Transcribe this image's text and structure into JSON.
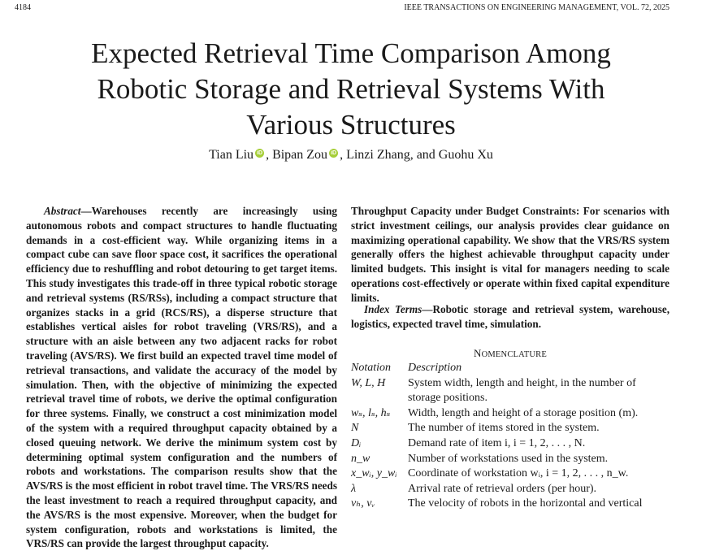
{
  "header": {
    "page_number": "4184",
    "journal": "IEEE TRANSACTIONS ON ENGINEERING MANAGEMENT, VOL. 72, 2025"
  },
  "title": "Expected Retrieval Time Comparison Among Robotic Storage and Retrieval Systems With Various Structures",
  "authors": [
    {
      "name": "Tian Liu",
      "orcid": true
    },
    {
      "name": "Bipan Zou",
      "orcid": true
    },
    {
      "name": "Linzi Zhang, and Guohu Xu",
      "orcid": false
    }
  ],
  "abstract": {
    "label": "Abstract",
    "text": "—Warehouses recently are increasingly using autonomous robots and compact structures to handle fluctuating demands in a cost-efficient way. While organizing items in a compact cube can save floor space cost, it sacrifices the operational efficiency due to reshuffling and robot detouring to get target items. This study investigates this trade-off in three typical robotic storage and retrieval systems (RS/RSs), including a compact structure that organizes stacks in a grid (RCS/RS), a disperse structure that establishes vertical aisles for robot traveling (VRS/RS), and a structure with an aisle between any two adjacent racks for robot traveling (AVS/RS). We first build an expected travel time model of retrieval transactions, and validate the accuracy of the model by simulation. Then, with the objective of minimizing the expected retrieval travel time of robots, we derive the optimal configuration for three systems. Finally, we construct a cost minimization model of the system with a required throughput capacity obtained by a closed queuing network. We derive the minimum system cost by determining optimal system configuration and the numbers of robots and workstations. The comparison results show that the AVS/RS is the most efficient in robot travel time. The VRS/RS needs the least investment to reach a required throughput capacity, and the AVS/RS is the most expensive. Moreover, when the budget for system configuration, robots and workstations is limited, the VRS/RS can provide the largest throughput capacity.",
    "continuation": "Throughput Capacity under Budget Constraints: For scenarios with strict investment ceilings, our analysis provides clear guidance on maximizing operational capability. We show that the VRS/RS system generally offers the highest achievable throughput capacity under limited budgets. This insight is vital for managers needing to scale operations cost-effectively or operate within fixed capital expenditure limits."
  },
  "index_terms": {
    "label": "Index Terms",
    "text": "—Robotic storage and retrieval system, warehouse, logistics, expected travel time, simulation."
  },
  "nomenclature": {
    "title_first": "N",
    "title_rest": "OMENCLATURE",
    "headers": [
      "Notation",
      "Description"
    ],
    "rows": [
      {
        "notation": "W, L, H",
        "description": "System width, length and height, in the number of storage positions."
      },
      {
        "notation": "wₛ, lₛ, hₛ",
        "description": "Width, length and height of a storage position (m)."
      },
      {
        "notation": "N",
        "description": "The number of items stored in the system."
      },
      {
        "notation": "Dᵢ",
        "description": "Demand rate of item i, i = 1, 2, . . . , N."
      },
      {
        "notation": "n_w",
        "description": "Number of workstations used in the system."
      },
      {
        "notation": "x_wᵢ, y_wᵢ",
        "description": "Coordinate of workstation wᵢ, i = 1, 2, . . . , n_w."
      },
      {
        "notation": "λ",
        "description": "Arrival rate of retrieval orders (per hour)."
      },
      {
        "notation": "vₕ, vᵥ",
        "description": "The velocity of robots in the horizontal and vertical"
      }
    ]
  }
}
